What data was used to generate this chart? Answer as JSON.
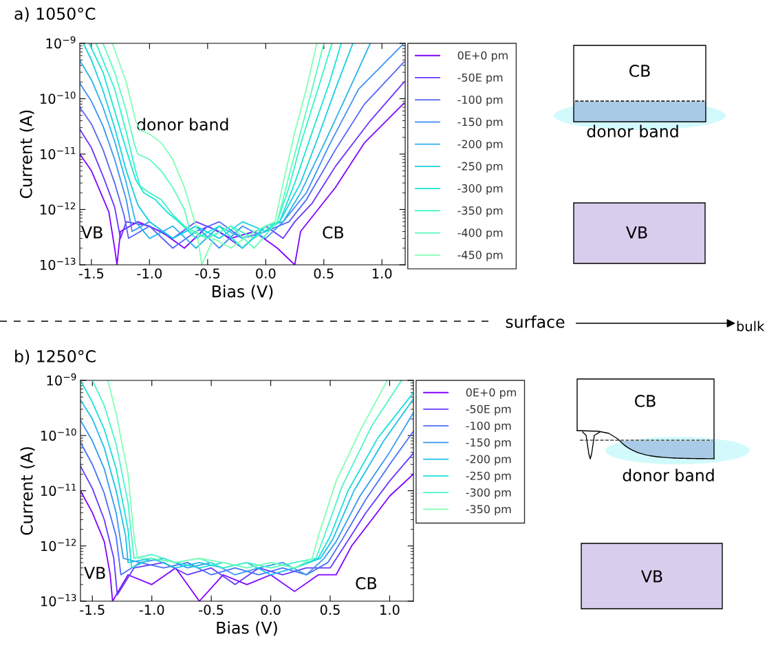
{
  "chart_data": [
    {
      "type": "line",
      "title": "a) 1050°C",
      "xlabel": "Bias (V)",
      "ylabel": "Current (A)",
      "log": "y",
      "legend": "right",
      "grid": false,
      "line_style": "solid",
      "xlim": [
        -1.6,
        1.2
      ],
      "xticks": [
        -1.5,
        {
          "value": -1,
          "label": "-1.0"
        },
        -0.5,
        {
          "value": 0,
          "label": "0.0"
        },
        0.5,
        {
          "value": 1,
          "label": "1.0"
        }
      ],
      "ylim": [
        1e-13,
        1e-09
      ],
      "yticks": [
        {
          "value": 1e-13,
          "label": "10$^{−13}$"
        },
        {
          "value": 1e-12,
          "label": "10$^{−12}$"
        },
        {
          "value": 1e-11,
          "label": "10$^{−11}$"
        },
        {
          "value": 1e-10,
          "label": "10$^{−10}$"
        },
        {
          "value": 1e-09,
          "label": "10$^{−9}$"
        }
      ],
      "annotations": [
        "donor band",
        "VB",
        "CB",
        "CB",
        "donor band",
        "VB",
        "surface",
        "bulk"
      ],
      "series": [
        {
          "name": "0E+0 pm",
          "color": "#8000ff",
          "x": [
            -1.6,
            -1.5,
            -1.4,
            -1.35,
            -1.3,
            -1.28,
            -1.25,
            -1.1,
            -0.9,
            -0.7,
            -0.5,
            -0.3,
            -0.1,
            0.1,
            0.25,
            0.3,
            0.45,
            0.6,
            0.85,
            1.19
          ],
          "values": [
            1e-11,
            5e-12,
            1.6e-12,
            9e-13,
            2e-13,
            1e-13,
            4e-13,
            6e-13,
            4e-13,
            2e-13,
            5e-13,
            3e-13,
            4e-13,
            2e-13,
            1e-13,
            4e-13,
            1e-12,
            2.5e-12,
            1.6e-11,
            8.3e-11
          ]
        },
        {
          "name": "-50E pm",
          "color": "#6a34fe",
          "x": [
            -1.6,
            -1.5,
            -1.4,
            -1.3,
            -1.25,
            -1.2,
            -1.0,
            -0.8,
            -0.6,
            -0.4,
            -0.2,
            0.0,
            0.15,
            0.25,
            0.4,
            0.6,
            0.9,
            1.19
          ],
          "values": [
            2.8e-11,
            1.3e-11,
            4e-12,
            1.1e-12,
            3e-13,
            6e-13,
            5e-13,
            3e-13,
            6e-13,
            4e-13,
            2e-13,
            5e-13,
            3e-13,
            6e-13,
            1.3e-12,
            6e-12,
            4e-11,
            2e-10
          ]
        },
        {
          "name": "-100 pm",
          "color": "#5565fa",
          "x": [
            -1.6,
            -1.5,
            -1.4,
            -1.3,
            -1.22,
            -1.18,
            -1.0,
            -0.8,
            -0.6,
            -0.4,
            -0.2,
            0.0,
            0.2,
            0.35,
            0.6,
            0.85,
            1.19
          ],
          "values": [
            7e-11,
            3.5e-11,
            1.2e-11,
            3e-12,
            8e-13,
            3e-13,
            5e-13,
            2e-13,
            4e-13,
            6e-13,
            3e-13,
            4e-13,
            6e-13,
            1.5e-12,
            1.2e-11,
            8e-11,
            4.6e-10
          ]
        },
        {
          "name": "-150 pm",
          "color": "#3f8ff5",
          "x": [
            -1.6,
            -1.5,
            -1.4,
            -1.3,
            -1.2,
            -1.15,
            -1.0,
            -0.8,
            -0.6,
            -0.4,
            -0.2,
            0.0,
            0.15,
            0.35,
            0.55,
            0.8,
            1.19
          ],
          "values": [
            1.9e-10,
            9e-11,
            3.2e-11,
            8e-12,
            1.5e-12,
            4e-13,
            6e-13,
            3e-13,
            5e-13,
            2e-13,
            5e-13,
            3e-13,
            6e-13,
            2e-12,
            1.5e-11,
            1.5e-10,
            1e-09
          ]
        },
        {
          "name": "-200 pm",
          "color": "#2ab2ee",
          "x": [
            -1.6,
            -1.5,
            -1.4,
            -1.3,
            -1.2,
            -1.12,
            -1.0,
            -0.8,
            -0.6,
            -0.4,
            -0.2,
            0.0,
            0.15,
            0.3,
            0.5,
            0.7,
            0.9
          ],
          "values": [
            4.9e-10,
            2.2e-10,
            7e-11,
            1.7e-11,
            3e-12,
            6e-13,
            3e-13,
            5e-13,
            2e-13,
            5e-13,
            3e-13,
            5e-13,
            6e-13,
            2e-12,
            1.5e-11,
            1.2e-10,
            1e-09
          ]
        },
        {
          "name": "-250 pm",
          "color": "#14d0e4",
          "x": [
            -1.57,
            -1.5,
            -1.4,
            -1.3,
            -1.2,
            -1.1,
            -1.0,
            -0.8,
            -0.6,
            -0.4,
            -0.2,
            0.0,
            0.12,
            0.3,
            0.45,
            0.6,
            0.75
          ],
          "values": [
            1e-09,
            5e-10,
            1.4e-10,
            3e-11,
            5e-12,
            1.2e-12,
            6e-13,
            3e-13,
            5e-13,
            3e-13,
            6e-13,
            4e-13,
            6e-13,
            3e-12,
            2e-11,
            1.5e-10,
            1e-09
          ]
        },
        {
          "name": "-300 pm",
          "color": "#14e6d6",
          "x": [
            -1.52,
            -1.4,
            -1.3,
            -1.2,
            -1.12,
            -1.05,
            -0.95,
            -0.85,
            -0.75,
            -0.6,
            -0.4,
            -0.2,
            0.0,
            0.12,
            0.25,
            0.4,
            0.55,
            0.65
          ],
          "values": [
            1e-09,
            3e-10,
            6e-11,
            1.2e-11,
            3.5e-12,
            2e-12,
            1.5e-12,
            9e-13,
            6e-13,
            3e-13,
            5e-13,
            2e-13,
            5e-13,
            6e-13,
            3e-12,
            2.5e-11,
            2e-10,
            1e-09
          ]
        },
        {
          "name": "-350 pm",
          "color": "#33f5c6",
          "x": [
            -1.46,
            -1.3,
            -1.2,
            -1.12,
            -1.08,
            -1.0,
            -0.9,
            -0.8,
            -0.7,
            -0.5,
            -0.3,
            -0.1,
            0.1,
            0.2,
            0.3,
            0.45,
            0.57
          ],
          "values": [
            1e-09,
            1.5e-10,
            2.5e-11,
            5e-12,
            2.6e-12,
            2e-12,
            1.5e-12,
            8e-13,
            5e-13,
            3e-13,
            5e-13,
            3e-13,
            6e-13,
            2.5e-12,
            1.5e-11,
            1.5e-10,
            1e-09
          ]
        },
        {
          "name": "-400 pm",
          "color": "#59fcbc",
          "x": [
            -1.4,
            -1.3,
            -1.2,
            -1.13,
            -1.1,
            -1.0,
            -0.9,
            -0.8,
            -0.7,
            -0.65,
            -0.5,
            -0.3,
            -0.1,
            0.1,
            0.2,
            0.3,
            0.4,
            0.5
          ],
          "values": [
            1e-09,
            3e-10,
            6e-11,
            1.5e-11,
            1e-11,
            8e-12,
            5e-12,
            2.5e-12,
            1e-12,
            4e-13,
            3e-13,
            5e-13,
            2e-13,
            6e-13,
            4e-12,
            2.5e-11,
            1.5e-10,
            1e-09
          ]
        },
        {
          "name": "-450 pm",
          "color": "#80ffb4",
          "x": [
            -1.32,
            -1.2,
            -1.12,
            -1.08,
            -1.0,
            -0.9,
            -0.8,
            -0.7,
            -0.6,
            -0.55,
            -0.45,
            -0.3,
            -0.1,
            0.08,
            0.15,
            0.25,
            0.35,
            0.44
          ],
          "values": [
            1e-09,
            2e-10,
            4e-11,
            2.7e-11,
            2.3e-11,
            1.6e-11,
            8e-12,
            2.5e-12,
            5e-13,
            1e-13,
            3e-13,
            2e-13,
            4e-13,
            6e-13,
            3e-12,
            2.5e-11,
            1.5e-10,
            1e-09
          ]
        }
      ]
    },
    {
      "type": "line",
      "title": "b) 1250°C",
      "xlabel": "Bias (V)",
      "ylabel": "Current (A)",
      "log": "y",
      "legend": "right",
      "grid": false,
      "line_style": "solid",
      "xlim": [
        -1.6,
        1.2
      ],
      "xticks": [
        -1.5,
        {
          "value": -1,
          "label": "-1.0"
        },
        -0.5,
        {
          "value": 0,
          "label": "0.0"
        },
        0.5,
        {
          "value": 1,
          "label": "1.0"
        }
      ],
      "ylim": [
        1e-13,
        1e-09
      ],
      "yticks": [
        {
          "value": 1e-13,
          "label": "10$^{−13}$"
        },
        {
          "value": 1e-12,
          "label": "10$^{−12}$"
        },
        {
          "value": 1e-11,
          "label": "10$^{−11}$"
        },
        {
          "value": 1e-10,
          "label": "10$^{−10}$"
        },
        {
          "value": 1e-09,
          "label": "10$^{−9}$"
        }
      ],
      "annotations": [
        "VB",
        "CB",
        "CB",
        "donor band",
        "VB"
      ],
      "series": [
        {
          "name": "0E+0 pm",
          "color": "#8000ff",
          "x": [
            -1.6,
            -1.5,
            -1.4,
            -1.35,
            -1.33,
            -1.2,
            -1.0,
            -0.8,
            -0.6,
            -0.4,
            -0.2,
            0.0,
            0.2,
            0.4,
            0.55,
            0.68,
            0.85,
            1.0,
            1.2
          ],
          "values": [
            1e-11,
            4e-12,
            1.2e-12,
            3e-13,
            1e-13,
            3e-13,
            2e-13,
            4e-13,
            1e-13,
            3e-13,
            2e-13,
            3e-13,
            1.5e-13,
            3e-13,
            3e-13,
            1e-12,
            3e-12,
            8e-12,
            2e-11
          ]
        },
        {
          "name": "-50E pm",
          "color": "#6439fe",
          "x": [
            -1.6,
            -1.5,
            -1.4,
            -1.32,
            -1.29,
            -1.15,
            -0.9,
            -0.7,
            -0.5,
            -0.3,
            -0.1,
            0.1,
            0.3,
            0.5,
            0.62,
            0.8,
            1.0,
            1.2
          ],
          "values": [
            2.8e-11,
            1.1e-11,
            3e-12,
            6e-13,
            1.3e-13,
            4e-13,
            5e-13,
            3e-13,
            4e-13,
            2e-13,
            4e-13,
            3e-13,
            4e-13,
            4e-13,
            1e-12,
            4e-12,
            1.5e-11,
            4.8e-11
          ]
        },
        {
          "name": "-100 pm",
          "color": "#4a6ffa",
          "x": [
            -1.6,
            -1.5,
            -1.4,
            -1.3,
            -1.26,
            -1.1,
            -0.9,
            -0.7,
            -0.5,
            -0.3,
            -0.1,
            0.1,
            0.3,
            0.48,
            0.6,
            0.8,
            1.0,
            1.2
          ],
          "values": [
            7.5e-11,
            3e-11,
            9e-12,
            1.5e-12,
            3e-13,
            5e-13,
            4e-13,
            5e-13,
            3e-13,
            4e-13,
            3e-13,
            4e-13,
            3e-13,
            5e-13,
            1.3e-12,
            7e-12,
            3e-11,
            1.2e-10
          ]
        },
        {
          "name": "-150 pm",
          "color": "#3499f2",
          "x": [
            -1.6,
            -1.5,
            -1.4,
            -1.3,
            -1.24,
            -1.1,
            -0.9,
            -0.7,
            -0.5,
            -0.3,
            -0.1,
            0.1,
            0.3,
            0.45,
            0.55,
            0.75,
            1.0,
            1.2
          ],
          "values": [
            1.9e-10,
            8e-11,
            2.5e-11,
            4e-12,
            6e-13,
            5e-13,
            6e-13,
            4e-13,
            5e-13,
            3e-13,
            4e-13,
            5e-13,
            3e-13,
            6e-13,
            1.2e-12,
            8e-12,
            5e-11,
            2.6e-10
          ]
        },
        {
          "name": "-200 pm",
          "color": "#1cc0ea",
          "x": [
            -1.6,
            -1.5,
            -1.4,
            -1.3,
            -1.22,
            -1.2,
            -1.0,
            -0.8,
            -0.6,
            -0.4,
            -0.2,
            0.0,
            0.2,
            0.42,
            0.52,
            0.7,
            0.95,
            1.2
          ],
          "values": [
            4.4e-10,
            2e-10,
            6e-11,
            1e-11,
            1.5e-12,
            5e-13,
            6e-13,
            4e-13,
            5e-13,
            4e-13,
            5e-13,
            3e-13,
            4e-13,
            6e-13,
            1.3e-12,
            1e-11,
            8e-11,
            4.6e-10
          ]
        },
        {
          "name": "-250 pm",
          "color": "#1ae0dc",
          "x": [
            -1.6,
            -1.5,
            -1.4,
            -1.3,
            -1.2,
            -1.17,
            -1.0,
            -0.8,
            -0.6,
            -0.4,
            -0.2,
            0.0,
            0.2,
            0.4,
            0.5,
            0.65,
            0.9,
            1.2
          ],
          "values": [
            1e-09,
            4e-10,
            1.3e-10,
            2.5e-11,
            2e-12,
            4e-13,
            6e-13,
            5e-13,
            4e-13,
            5e-13,
            4e-13,
            5e-13,
            4e-13,
            6e-13,
            1.5e-12,
            1e-11,
            9e-11,
            6e-10
          ]
        },
        {
          "name": "-300 pm",
          "color": "#4af5c8",
          "x": [
            -1.5,
            -1.4,
            -1.3,
            -1.2,
            -1.15,
            -1.0,
            -0.8,
            -0.6,
            -0.4,
            -0.2,
            0.0,
            0.2,
            0.38,
            0.45,
            0.6,
            0.85,
            1.1
          ],
          "values": [
            1e-09,
            3.5e-10,
            7e-11,
            6e-12,
            6e-13,
            7e-13,
            5e-13,
            6e-13,
            4e-13,
            5e-13,
            4e-13,
            5e-13,
            6e-13,
            1.5e-12,
            1.2e-11,
            1.5e-10,
            1e-09
          ]
        },
        {
          "name": "-350 pm",
          "color": "#80ffb4",
          "x": [
            -1.37,
            -1.3,
            -1.2,
            -1.15,
            -1.12,
            -1.0,
            -0.8,
            -0.6,
            -0.4,
            -0.2,
            0.0,
            0.2,
            0.35,
            0.4,
            0.55,
            0.75,
            0.98
          ],
          "values": [
            1e-09,
            2.5e-10,
            2e-11,
            1.5e-12,
            6e-13,
            6e-13,
            5e-13,
            6e-13,
            5e-13,
            4e-13,
            5e-13,
            4e-13,
            6e-13,
            1.5e-12,
            1.5e-11,
            1.2e-10,
            1e-09
          ]
        }
      ]
    }
  ]
}
